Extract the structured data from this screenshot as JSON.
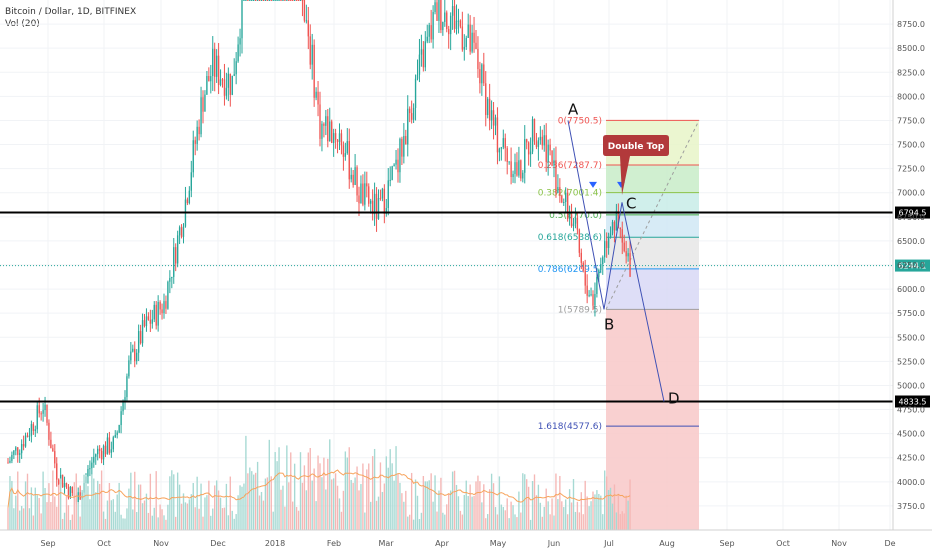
{
  "header": {
    "symbol_title": "Bitcoin / Dollar, 1D, BITFINEX",
    "volume_label": "Vol (20)"
  },
  "colors": {
    "up_candle": "#26a69a",
    "down_candle": "#ef5350",
    "volume_up": "#a6d9d3",
    "volume_down": "#f5b7b5",
    "volume_ma": "#f7a35c",
    "fib_line": "#3f51b5",
    "horizontal_level": "#000000",
    "current_price": "#26a69a",
    "callout": "#b2393b"
  },
  "chart_data": {
    "type": "candlestick",
    "title": "Bitcoin / Dollar, 1D, BITFINEX",
    "y_axis": {
      "min": 3500,
      "max": 9000,
      "scale": "linear",
      "position": "right",
      "tick_labels": [
        "3750.0",
        "4000.0",
        "4250.0",
        "4500.0",
        "4750.0",
        "5000.0",
        "5250.0",
        "5500.0",
        "5750.0",
        "6000.0",
        "6250.0",
        "6500.0",
        "6750.0",
        "7000.0",
        "7250.0",
        "7500.0",
        "7750.0",
        "8000.0",
        "8250.0",
        "8500.0",
        "8750.0"
      ]
    },
    "x_axis": {
      "tick_labels": [
        "Sep",
        "Oct",
        "Nov",
        "Dec",
        "2018",
        "Feb",
        "Mar",
        "Apr",
        "May",
        "Jun",
        "Jul",
        "Aug",
        "Sep",
        "Oct",
        "Nov",
        "De"
      ]
    },
    "series": [
      {
        "name": "Price",
        "ohlc_anchors": [
          [
            0,
            4200
          ],
          [
            10,
            4500
          ],
          [
            18,
            4800
          ],
          [
            25,
            4100
          ],
          [
            35,
            3800
          ],
          [
            45,
            4300
          ],
          [
            55,
            4400
          ],
          [
            62,
            5200
          ],
          [
            70,
            5600
          ],
          [
            80,
            5850
          ],
          [
            90,
            6800
          ],
          [
            100,
            8000
          ],
          [
            105,
            8300
          ],
          [
            115,
            8150
          ],
          [
            125,
            9800
          ],
          [
            140,
            10000
          ],
          [
            150,
            9300
          ],
          [
            160,
            7700
          ],
          [
            170,
            7600
          ],
          [
            180,
            7000
          ],
          [
            190,
            6800
          ],
          [
            200,
            7300
          ],
          [
            210,
            8200
          ],
          [
            220,
            8900
          ],
          [
            230,
            8800
          ],
          [
            240,
            8400
          ],
          [
            250,
            7600
          ],
          [
            262,
            7200
          ],
          [
            270,
            7700
          ],
          [
            276,
            7500
          ],
          [
            285,
            6900
          ],
          [
            290,
            6700
          ],
          [
            295,
            6100
          ],
          [
            300,
            5900
          ],
          [
            305,
            6400
          ],
          [
            310,
            6750
          ],
          [
            313,
            6600
          ],
          [
            317,
            6280
          ]
        ]
      },
      {
        "name": "Volume",
        "note": "volume panel"
      },
      {
        "name": "Volume MA",
        "note": "orange moving average over volume"
      }
    ],
    "horizontal_levels": [
      {
        "price": 6794.5,
        "label": "6794.5"
      },
      {
        "price": 4833.5,
        "label": "4833.5"
      }
    ],
    "current_price": {
      "price": 6244.1,
      "label": "6244.1"
    },
    "fibonacci": [
      {
        "ratio_label": "0(7750.5)",
        "price": 7750.5,
        "fill": "#f8c8c8"
      },
      {
        "ratio_label": "0.236(7287.7)",
        "price": 7287.7,
        "fill": "#e8f4c8"
      },
      {
        "ratio_label": "0.382(7001.4)",
        "price": 7001.4,
        "fill": "#c8ecc8"
      },
      {
        "ratio_label": "0.5(6770.0)",
        "price": 6770.0,
        "fill": "#c8ece8"
      },
      {
        "ratio_label": "0.618(6538.6)",
        "price": 6538.6,
        "fill": "#d0e8f4"
      },
      {
        "ratio_label": "0.786(6209.5)",
        "price": 6209.5,
        "fill": "#e6e6e6"
      },
      {
        "ratio_label": "1(5789.5)",
        "price": 5789.5,
        "fill": "#d8d8f6"
      },
      {
        "ratio_label": "1.618(4577.6)",
        "price": 4577.6,
        "fill": "#f8c8c8"
      }
    ],
    "annotations": [
      {
        "label": "A",
        "price": 7750.5
      },
      {
        "label": "B",
        "price": 5789.5
      },
      {
        "label": "C",
        "price": 6900
      },
      {
        "label": "D",
        "price": 4833.5
      },
      {
        "label": "Double Top"
      }
    ],
    "grid": true
  }
}
